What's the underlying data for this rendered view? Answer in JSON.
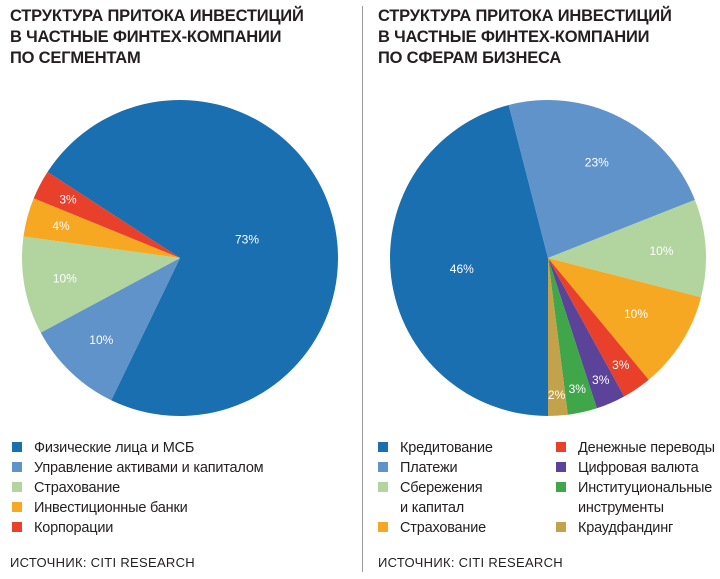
{
  "colors": {
    "dark_blue": "#1a6fb0",
    "light_blue": "#5f93c9",
    "light_green": "#b2d5a0",
    "orange": "#f7a823",
    "red": "#e8402a",
    "purple": "#5a4399",
    "green": "#3fa64a",
    "tan": "#c2a24a"
  },
  "chart_data": [
    {
      "type": "pie",
      "title": [
        "СТРУКТУРА ПРИТОКА ИНВЕСТИЦИЙ",
        "В ЧАСТНЫЕ ФИНТЕХ-КОМПАНИИ",
        "ПО СЕГМЕНТАМ"
      ],
      "slices": [
        {
          "label": "Физические лица и МСБ",
          "value": 73,
          "display": "73%",
          "color": "#1a6fb0"
        },
        {
          "label": "Управление активами и капиталом",
          "value": 10,
          "display": "10%",
          "color": "#5f93c9"
        },
        {
          "label": "Страхование",
          "value": 10,
          "display": "10%",
          "color": "#b2d5a0"
        },
        {
          "label": "Инвестиционные банки",
          "value": 4,
          "display": "4%",
          "color": "#f7a823"
        },
        {
          "label": "Корпорации",
          "value": 3,
          "display": "3%",
          "color": "#e8402a"
        }
      ],
      "source": "ИСТОЧНИК: CITI RESEARCH"
    },
    {
      "type": "pie",
      "title": [
        "СТРУКТУРА ПРИТОКА ИНВЕСТИЦИЙ",
        "В ЧАСТНЫЕ ФИНТЕХ-КОМПАНИИ",
        "ПО СФЕРАМ БИЗНЕСА"
      ],
      "slices": [
        {
          "label": "Кредитование",
          "value": 46,
          "display": "46%",
          "color": "#1a6fb0"
        },
        {
          "label": "Платежи",
          "value": 23,
          "display": "23%",
          "color": "#5f93c9"
        },
        {
          "label": "Сбережения и капитал",
          "label_lines": [
            "Сбережения",
            "и капитал"
          ],
          "value": 10,
          "display": "10%",
          "color": "#b2d5a0"
        },
        {
          "label": "Страхование",
          "value": 10,
          "display": "10%",
          "color": "#f7a823"
        },
        {
          "label": "Денежные переводы",
          "value": 3,
          "display": "3%",
          "color": "#e8402a"
        },
        {
          "label": "Цифровая валюта",
          "value": 3,
          "display": "3%",
          "color": "#5a4399"
        },
        {
          "label": "Институциональные инструменты",
          "label_lines": [
            "Институциональные",
            "инструменты"
          ],
          "value": 3,
          "display": "3%",
          "color": "#3fa64a"
        },
        {
          "label": "Краудфандинг",
          "value": 2,
          "display": "2%",
          "color": "#c2a24a"
        }
      ],
      "source": "ИСТОЧНИК: CITI RESEARCH"
    }
  ]
}
